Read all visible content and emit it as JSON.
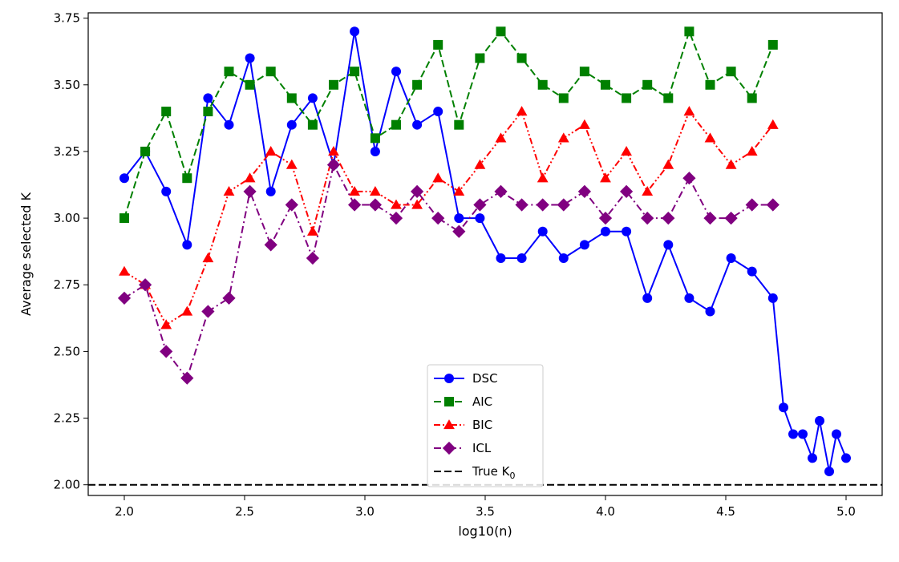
{
  "chart_data": {
    "type": "line",
    "title": "",
    "xlabel": "log10(n)",
    "ylabel": "Average selected K",
    "xlim": [
      1.85,
      5.15
    ],
    "ylim": [
      1.96,
      3.77
    ],
    "xticks": [
      2.0,
      2.5,
      3.0,
      3.5,
      4.0,
      4.5,
      5.0
    ],
    "xtick_labels": [
      "2.0",
      "2.5",
      "3.0",
      "3.5",
      "4.0",
      "4.5",
      "5.0"
    ],
    "yticks": [
      2.0,
      2.25,
      2.5,
      2.75,
      3.0,
      3.25,
      3.5,
      3.75
    ],
    "ytick_labels": [
      "2.00",
      "2.25",
      "2.50",
      "2.75",
      "3.00",
      "3.25",
      "3.50",
      "3.75"
    ],
    "grid": false,
    "legend_position": "lower-center",
    "series": [
      {
        "name": "DSC",
        "color": "#0000ff",
        "marker": "circle",
        "linestyle": "solid",
        "x": [
          2.0,
          2.087,
          2.174,
          2.261,
          2.348,
          2.435,
          2.522,
          2.609,
          2.696,
          2.783,
          2.87,
          2.957,
          3.043,
          3.13,
          3.217,
          3.304,
          3.391,
          3.478,
          3.565,
          3.652,
          3.739,
          3.826,
          3.913,
          4.0,
          4.087,
          4.174,
          4.261,
          4.348,
          4.435,
          4.522,
          4.609,
          4.696,
          4.74,
          4.78,
          4.82,
          4.86,
          4.89,
          4.93,
          4.96,
          5.0
        ],
        "y": [
          3.15,
          3.25,
          3.1,
          2.9,
          3.45,
          3.35,
          3.6,
          3.1,
          3.35,
          3.45,
          3.2,
          3.7,
          3.25,
          3.55,
          3.35,
          3.4,
          3.0,
          3.0,
          2.85,
          2.85,
          2.95,
          2.85,
          2.9,
          2.95,
          2.95,
          2.7,
          2.9,
          2.7,
          2.65,
          2.85,
          2.8,
          2.7,
          2.29,
          2.19,
          2.19,
          2.1,
          2.24,
          2.05,
          2.19,
          2.1
        ]
      },
      {
        "name": "AIC",
        "color": "#008000",
        "marker": "square",
        "linestyle": "dashed",
        "x": [
          2.0,
          2.087,
          2.174,
          2.261,
          2.348,
          2.435,
          2.522,
          2.609,
          2.696,
          2.783,
          2.87,
          2.957,
          3.043,
          3.13,
          3.217,
          3.304,
          3.391,
          3.478,
          3.565,
          3.652,
          3.739,
          3.826,
          3.913,
          4.0,
          4.087,
          4.174,
          4.261,
          4.348,
          4.435,
          4.522,
          4.609,
          4.696
        ],
        "y": [
          3.0,
          3.25,
          3.4,
          3.15,
          3.4,
          3.55,
          3.5,
          3.55,
          3.45,
          3.35,
          3.5,
          3.55,
          3.3,
          3.35,
          3.5,
          3.65,
          3.35,
          3.6,
          3.7,
          3.6,
          3.5,
          3.45,
          3.55,
          3.5,
          3.45,
          3.5,
          3.45,
          3.7,
          3.5,
          3.55,
          3.45,
          3.65
        ]
      },
      {
        "name": "BIC",
        "color": "#ff0000",
        "marker": "triangle",
        "linestyle": "dashdotdot",
        "x": [
          2.0,
          2.087,
          2.174,
          2.261,
          2.348,
          2.435,
          2.522,
          2.609,
          2.696,
          2.783,
          2.87,
          2.957,
          3.043,
          3.13,
          3.217,
          3.304,
          3.391,
          3.478,
          3.565,
          3.652,
          3.739,
          3.826,
          3.913,
          4.0,
          4.087,
          4.174,
          4.261,
          4.348,
          4.435,
          4.522,
          4.609,
          4.696
        ],
        "y": [
          2.8,
          2.75,
          2.6,
          2.65,
          2.85,
          3.1,
          3.15,
          3.25,
          3.2,
          2.95,
          3.25,
          3.1,
          3.1,
          3.05,
          3.05,
          3.15,
          3.1,
          3.2,
          3.3,
          3.4,
          3.15,
          3.3,
          3.35,
          3.15,
          3.25,
          3.1,
          3.2,
          3.4,
          3.3,
          3.2,
          3.25,
          3.35
        ]
      },
      {
        "name": "ICL",
        "color": "#800080",
        "marker": "diamond",
        "linestyle": "dashdot",
        "x": [
          2.0,
          2.087,
          2.174,
          2.261,
          2.348,
          2.435,
          2.522,
          2.609,
          2.696,
          2.783,
          2.87,
          2.957,
          3.043,
          3.13,
          3.217,
          3.304,
          3.391,
          3.478,
          3.565,
          3.652,
          3.739,
          3.826,
          3.913,
          4.0,
          4.087,
          4.174,
          4.261,
          4.348,
          4.435,
          4.522,
          4.609,
          4.696
        ],
        "y": [
          2.7,
          2.75,
          2.5,
          2.4,
          2.65,
          2.7,
          3.1,
          2.9,
          3.05,
          2.85,
          3.2,
          3.05,
          3.05,
          3.0,
          3.1,
          3.0,
          2.95,
          3.05,
          3.1,
          3.05,
          3.05,
          3.05,
          3.1,
          3.0,
          3.1,
          3.0,
          3.0,
          3.15,
          3.0,
          3.0,
          3.05,
          3.05
        ]
      }
    ],
    "reference_lines": [
      {
        "name": "True K0",
        "y": 2.0,
        "color": "#000000",
        "linestyle": "dashed"
      }
    ],
    "legend": [
      {
        "label": "DSC",
        "series": "DSC"
      },
      {
        "label": "AIC",
        "series": "AIC"
      },
      {
        "label": "BIC",
        "series": "BIC"
      },
      {
        "label": "ICL",
        "series": "ICL"
      },
      {
        "label": "True K",
        "subscript": "0",
        "series": "True K0"
      }
    ]
  }
}
